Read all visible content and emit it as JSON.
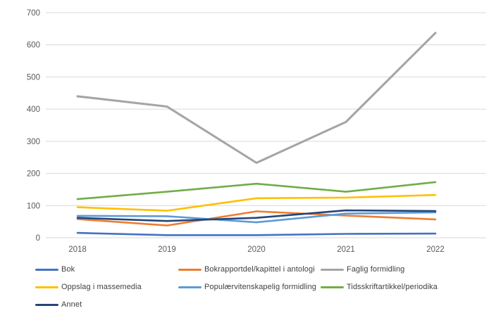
{
  "chart_data": {
    "type": "line",
    "title": "",
    "xlabel": "",
    "ylabel": "",
    "categories": [
      "2018",
      "2019",
      "2020",
      "2021",
      "2022"
    ],
    "series": [
      {
        "name": "Bok",
        "color": "#4472C4",
        "values": [
          15,
          8,
          8,
          12,
          13
        ]
      },
      {
        "name": "Bokrapportdel/kapittel i antologi",
        "color": "#ED7D31",
        "values": [
          58,
          38,
          82,
          69,
          57
        ]
      },
      {
        "name": "Faglig formidling",
        "color": "#A5A5A5",
        "values": [
          440,
          408,
          233,
          360,
          637
        ]
      },
      {
        "name": "Oppslag i massemedia",
        "color": "#FFC000",
        "values": [
          95,
          84,
          123,
          125,
          133
        ]
      },
      {
        "name": "Populærvitenskapelig formidling",
        "color": "#5B9BD5",
        "values": [
          68,
          67,
          48,
          75,
          79
        ]
      },
      {
        "name": "Tidsskriftartikkel/periodika",
        "color": "#70AD47",
        "values": [
          120,
          143,
          168,
          143,
          173
        ]
      },
      {
        "name": "Annet",
        "color": "#264478",
        "values": [
          62,
          52,
          62,
          85,
          83
        ]
      }
    ],
    "ylim": [
      0,
      700
    ],
    "yticks": [
      0,
      100,
      200,
      300,
      400,
      500,
      600,
      700
    ],
    "grid": "horizontal",
    "gridline_color": "#d9d9d9",
    "axis_label_color": "#595959",
    "legend_position": "bottom",
    "legend_grid": [
      {
        "series": "Bok",
        "row": 0,
        "col": 0
      },
      {
        "series": "Bokrapportdel/kapittel i antologi",
        "row": 0,
        "col": 1
      },
      {
        "series": "Faglig formidling",
        "row": 0,
        "col": 2
      },
      {
        "series": "Oppslag i massemedia",
        "row": 1,
        "col": 0
      },
      {
        "series": "Populærvitenskapelig formidling",
        "row": 1,
        "col": 1
      },
      {
        "series": "Tidsskriftartikkel/periodika",
        "row": 1,
        "col": 2
      },
      {
        "series": "Annet",
        "row": 2,
        "col": 0
      }
    ]
  }
}
